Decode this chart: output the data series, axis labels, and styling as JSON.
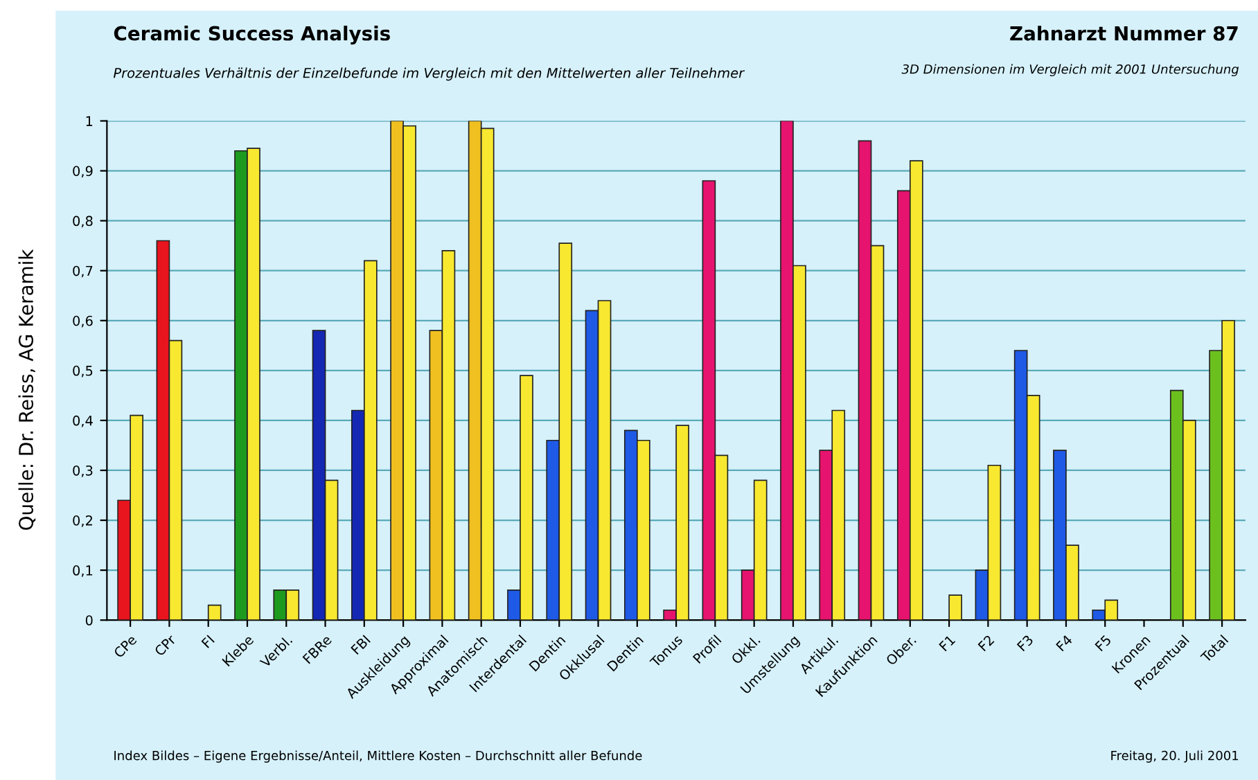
{
  "chart_data": {
    "type": "bar",
    "title": "Ceramic Success Analysis",
    "subtitle": "Prozentuales Verhältnis der Einzelbefunde im Vergleich mit den Mittelwerten aller Teilnehmer",
    "annotations": [
      "Zahnarzt Nummer 87",
      "3D Dimensionen im Vergleich mit 2001 Untersuchung",
      "Index Bildes – Eigene Ergebnisse/Anteil, Mittlere Kosten – Durchschnitt aller Befunde",
      "Freitag, 20. Juli 2001",
      "Quelle: Dr. Reiss, AG Keramik"
    ],
    "categories": [
      "CPe",
      "CPr",
      "FI",
      "Klebe",
      "Verbl.",
      "FBRe",
      "FBI",
      "Auskleidung",
      "Approximal",
      "Anatomisch",
      "Interdental",
      "Dentin",
      "Okklusal",
      "Dentin",
      "Tonus",
      "Profil",
      "Okkl.",
      "Umstellung",
      "Artikul.",
      "Kaufunktion",
      "Ober.",
      "F1",
      "F2",
      "F3",
      "F4",
      "F5",
      "Kronen",
      "Prozentual",
      "Total"
    ],
    "series": [
      {
        "colors": [
          "#e8141e",
          "#e8141e",
          null,
          "#1e9a1e",
          "#1e9a1e",
          "#1428b4",
          "#1428b4",
          "#f0c020",
          "#f0c020",
          "#f0c020",
          "#1e5ae6",
          "#1e5ae6",
          "#1e5ae6",
          "#1e5ae6",
          "#e6146e",
          "#e6146e",
          "#e6146e",
          "#e6146e",
          "#e6146e",
          "#e6146e",
          "#e6146e",
          null,
          "#1e5ae6",
          "#1e5ae6",
          "#1e5ae6",
          "#1e5ae6",
          null,
          "#6cc01e",
          "#6cc01e"
        ],
        "values": [
          0.24,
          0.76,
          null,
          0.94,
          0.06,
          0.58,
          0.42,
          1.0,
          0.58,
          1.0,
          0.06,
          0.36,
          0.62,
          0.38,
          0.02,
          0.88,
          0.1,
          1.0,
          0.34,
          0.96,
          0.86,
          null,
          0.1,
          0.54,
          0.34,
          0.02,
          null,
          0.46,
          0.54
        ]
      },
      {
        "color": "#f8e830",
        "values": [
          0.41,
          0.56,
          0.03,
          0.945,
          0.06,
          0.28,
          0.72,
          0.99,
          0.74,
          0.985,
          0.49,
          0.755,
          0.64,
          0.36,
          0.39,
          0.33,
          0.28,
          0.71,
          0.42,
          0.75,
          0.92,
          0.05,
          0.31,
          0.45,
          0.15,
          0.04,
          null,
          0.4,
          0.6
        ]
      }
    ],
    "ylim": [
      0,
      1
    ],
    "yticks": [
      0,
      {
        "value": 0.1,
        "label": "0,1"
      },
      {
        "value": 0.2,
        "label": "0,2"
      },
      {
        "value": 0.3,
        "label": "0,3"
      },
      {
        "value": 0.4,
        "label": "0,4"
      },
      {
        "value": 0.5,
        "label": "0,5"
      },
      {
        "value": 0.6,
        "label": "0,6"
      },
      {
        "value": 0.7,
        "label": "0,7"
      },
      {
        "value": 0.8,
        "label": "0,8"
      },
      {
        "value": 0.9,
        "label": "0,9"
      },
      1
    ],
    "grid": "y",
    "legend": false
  }
}
